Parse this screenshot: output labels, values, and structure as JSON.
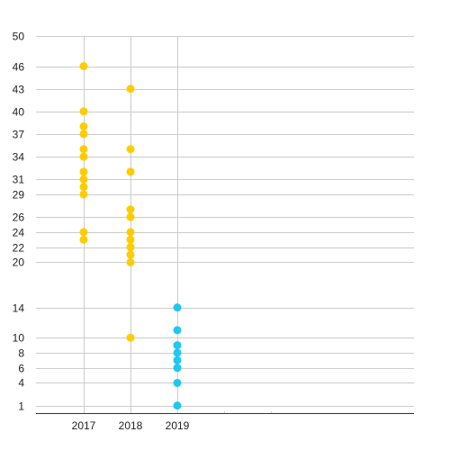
{
  "chart_data": {
    "type": "scatter",
    "title": "",
    "xlabel": "",
    "ylabel": "",
    "categories": [
      "2017",
      "2018",
      "2019"
    ],
    "y_ticks": [
      1,
      4,
      6,
      8,
      10,
      14,
      20,
      22,
      24,
      26,
      29,
      31,
      34,
      37,
      40,
      43,
      46,
      50
    ],
    "ylim": [
      0,
      50
    ],
    "grid": true,
    "legend": "none",
    "colors": {
      "gold": "#FFCC00",
      "cyan": "#1EC8F0",
      "grid": "#CCCCCC",
      "axis": "#333333"
    },
    "points": [
      {
        "x": "2017",
        "y": 46,
        "color": "gold"
      },
      {
        "x": "2017",
        "y": 40,
        "color": "gold"
      },
      {
        "x": "2017",
        "y": 38,
        "color": "gold"
      },
      {
        "x": "2017",
        "y": 37,
        "color": "gold"
      },
      {
        "x": "2017",
        "y": 35,
        "color": "gold"
      },
      {
        "x": "2017",
        "y": 34,
        "color": "gold"
      },
      {
        "x": "2017",
        "y": 32,
        "color": "gold"
      },
      {
        "x": "2017",
        "y": 31,
        "color": "gold"
      },
      {
        "x": "2017",
        "y": 30,
        "color": "gold"
      },
      {
        "x": "2017",
        "y": 29,
        "color": "gold"
      },
      {
        "x": "2017",
        "y": 24,
        "color": "gold"
      },
      {
        "x": "2017",
        "y": 23,
        "color": "gold"
      },
      {
        "x": "2018",
        "y": 43,
        "color": "gold"
      },
      {
        "x": "2018",
        "y": 35,
        "color": "gold"
      },
      {
        "x": "2018",
        "y": 32,
        "color": "gold"
      },
      {
        "x": "2018",
        "y": 27,
        "color": "gold"
      },
      {
        "x": "2018",
        "y": 26,
        "color": "gold"
      },
      {
        "x": "2018",
        "y": 24,
        "color": "gold"
      },
      {
        "x": "2018",
        "y": 23,
        "color": "gold"
      },
      {
        "x": "2018",
        "y": 22,
        "color": "gold"
      },
      {
        "x": "2018",
        "y": 21,
        "color": "gold"
      },
      {
        "x": "2018",
        "y": 20,
        "color": "gold"
      },
      {
        "x": "2018",
        "y": 10,
        "color": "gold"
      },
      {
        "x": "2019",
        "y": 14,
        "color": "cyan"
      },
      {
        "x": "2019",
        "y": 11,
        "color": "cyan"
      },
      {
        "x": "2019",
        "y": 9,
        "color": "cyan"
      },
      {
        "x": "2019",
        "y": 8,
        "color": "cyan"
      },
      {
        "x": "2019",
        "y": 7,
        "color": "cyan"
      },
      {
        "x": "2019",
        "y": 6,
        "color": "cyan"
      },
      {
        "x": "2019",
        "y": 4,
        "color": "cyan"
      },
      {
        "x": "2019",
        "y": 1,
        "color": "cyan"
      }
    ]
  }
}
